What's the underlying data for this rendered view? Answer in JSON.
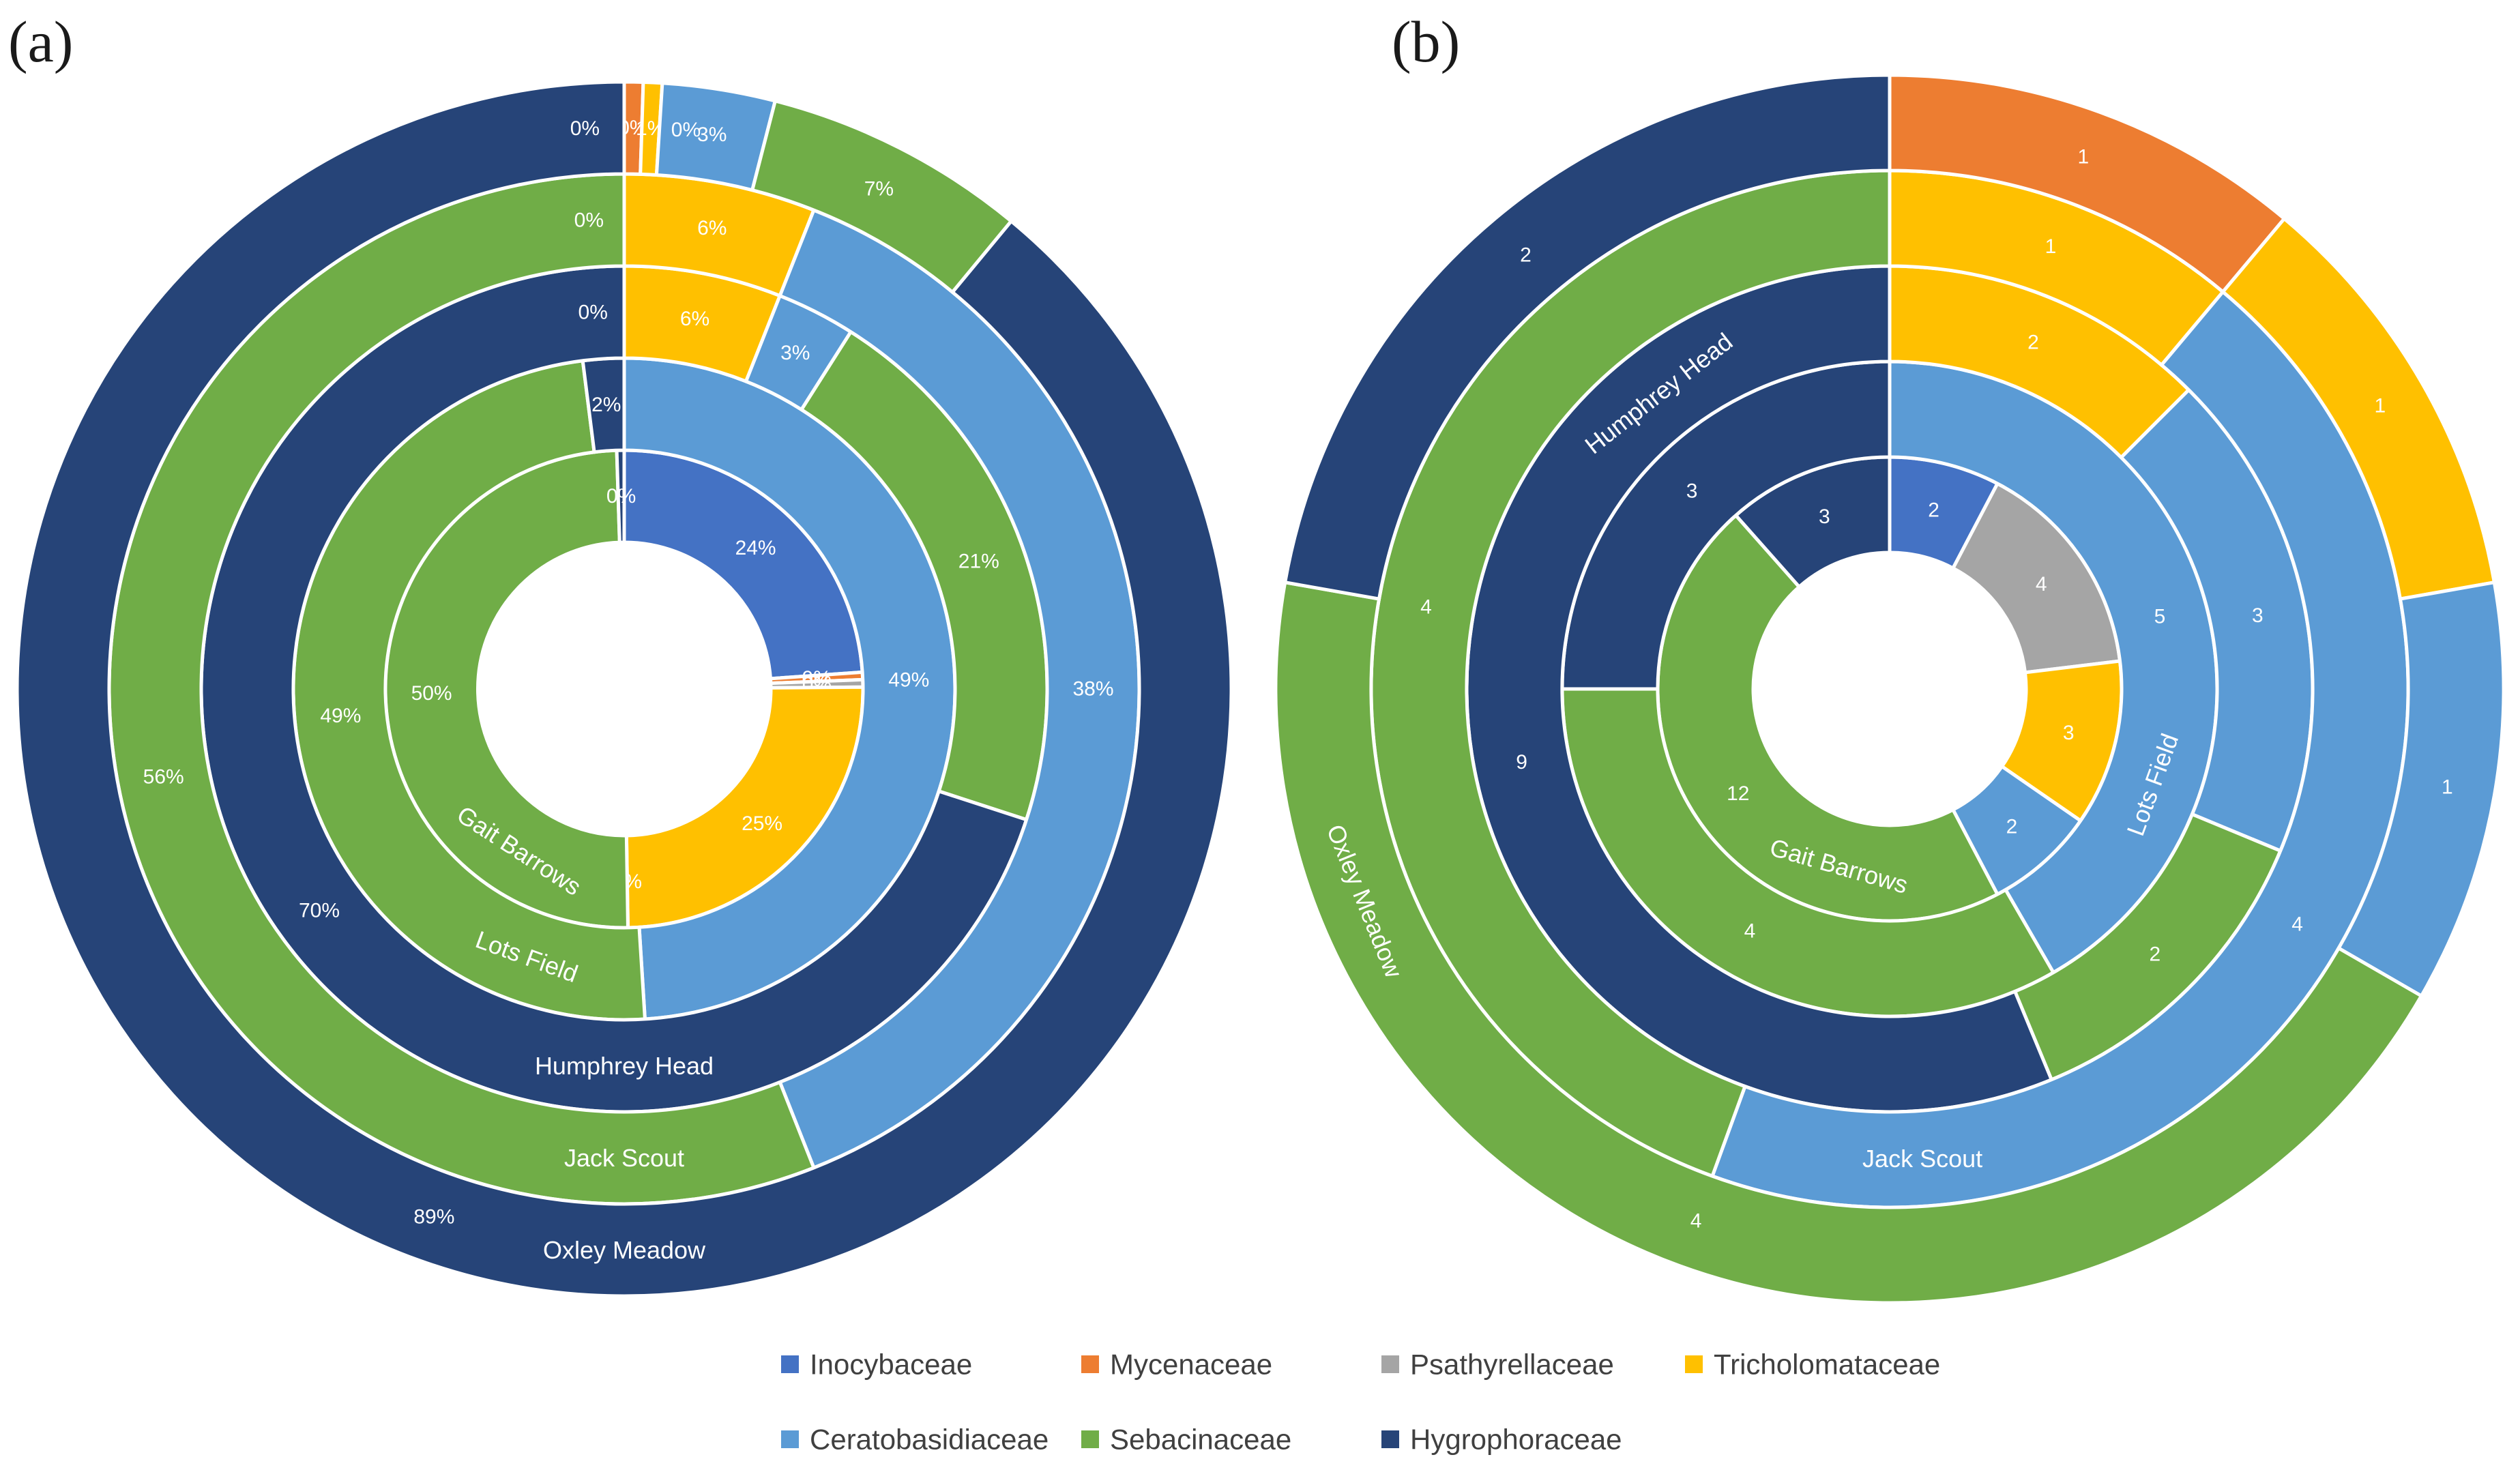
{
  "colors": {
    "Inocybaceae": "#4472C4",
    "Mycenaceae": "#ED7D31",
    "Psathyrellaceae": "#A5A5A5",
    "Tricholomataceae": "#FFC000",
    "Ceratobasidiaceae": "#5B9BD5",
    "Sebacinaceae": "#70AD47",
    "Hygrophoraceae": "#264478"
  },
  "legend": {
    "items": [
      {
        "name": "Inocybaceae",
        "icon": "square-swatch"
      },
      {
        "name": "Mycenaceae",
        "icon": "square-swatch"
      },
      {
        "name": "Psathyrellaceae",
        "icon": "square-swatch"
      },
      {
        "name": "Tricholomataceae",
        "icon": "square-swatch"
      },
      {
        "name": "Ceratobasidiaceae",
        "icon": "square-swatch"
      },
      {
        "name": "Sebacinaceae",
        "icon": "square-swatch"
      },
      {
        "name": "Hygrophoraceae",
        "icon": "square-swatch"
      }
    ]
  },
  "chart_data": [
    {
      "type": "multi-level doughnut",
      "panel_label": "(a)",
      "value_format": "percent",
      "categories": [
        "Inocybaceae",
        "Mycenaceae",
        "Psathyrellaceae",
        "Tricholomataceae",
        "Ceratobasidiaceae",
        "Sebacinaceae",
        "Hygrophoraceae"
      ],
      "rings": [
        {
          "name": "Gait Barrows",
          "position": "innermost",
          "segments": [
            {
              "family": "Inocybaceae",
              "value": 24,
              "label": "24%"
            },
            {
              "family": "Mycenaceae",
              "value": 0.5,
              "label": "0%"
            },
            {
              "family": "Psathyrellaceae",
              "value": 0.5,
              "label": "0%"
            },
            {
              "family": "Tricholomataceae",
              "value": 25,
              "label": "25%"
            },
            {
              "family": "Ceratobasidiaceae",
              "value": 0,
              "label": "0%"
            },
            {
              "family": "Sebacinaceae",
              "value": 50,
              "label": "50%"
            },
            {
              "family": "Hygrophoraceae",
              "value": 0.5,
              "label": "0%"
            }
          ]
        },
        {
          "name": "Lots Field",
          "segments": [
            {
              "family": "Inocybaceae",
              "value": 0,
              "label": "0%"
            },
            {
              "family": "Mycenaceae",
              "value": 0,
              "label": "0%"
            },
            {
              "family": "Psathyrellaceae",
              "value": 0,
              "label": "0%"
            },
            {
              "family": "Tricholomataceae",
              "value": 0,
              "label": ""
            },
            {
              "family": "Ceratobasidiaceae",
              "value": 49,
              "label": "49%"
            },
            {
              "family": "Sebacinaceae",
              "value": 49,
              "label": "49%"
            },
            {
              "family": "Hygrophoraceae",
              "value": 2,
              "label": "2%"
            }
          ]
        },
        {
          "name": "Humphrey Head",
          "segments": [
            {
              "family": "Inocybaceae",
              "value": 0,
              "label": ""
            },
            {
              "family": "Mycenaceae",
              "value": 0,
              "label": ""
            },
            {
              "family": "Psathyrellaceae",
              "value": 0,
              "label": ""
            },
            {
              "family": "Tricholomataceae",
              "value": 6,
              "label": "6%"
            },
            {
              "family": "Ceratobasidiaceae",
              "value": 3,
              "label": "3%"
            },
            {
              "family": "Sebacinaceae",
              "value": 21,
              "label": "21%"
            },
            {
              "family": "Hygrophoraceae",
              "value": 70,
              "label": "70%",
              "end_label": "0%"
            }
          ]
        },
        {
          "name": "Jack Scout",
          "segments": [
            {
              "family": "Inocybaceae",
              "value": 0,
              "label": ""
            },
            {
              "family": "Mycenaceae",
              "value": 0,
              "label": ""
            },
            {
              "family": "Psathyrellaceae",
              "value": 0,
              "label": ""
            },
            {
              "family": "Tricholomataceae",
              "value": 6,
              "label": "6%"
            },
            {
              "family": "Ceratobasidiaceae",
              "value": 38,
              "label": "38%"
            },
            {
              "family": "Sebacinaceae",
              "value": 56,
              "label": "56%",
              "end_label": "0%"
            },
            {
              "family": "Hygrophoraceae",
              "value": 0,
              "label": ""
            }
          ]
        },
        {
          "name": "Oxley Meadow",
          "position": "outermost",
          "segments": [
            {
              "family": "Inocybaceae",
              "value": 0,
              "label": ""
            },
            {
              "family": "Mycenaceae",
              "value": 0.5,
              "label": "0%"
            },
            {
              "family": "Psathyrellaceae",
              "value": 0,
              "label": ""
            },
            {
              "family": "Tricholomataceae",
              "value": 0.5,
              "label": "1%"
            },
            {
              "family": "Ceratobasidiaceae",
              "value": 3,
              "label": "3%",
              "start_label": "0%"
            },
            {
              "family": "Sebacinaceae",
              "value": 7,
              "label": "7%"
            },
            {
              "family": "Hygrophoraceae",
              "value": 89,
              "label": "89%",
              "end_label": "0%"
            }
          ]
        }
      ]
    },
    {
      "type": "multi-level doughnut",
      "panel_label": "(b)",
      "value_format": "count",
      "categories": [
        "Inocybaceae",
        "Mycenaceae",
        "Psathyrellaceae",
        "Tricholomataceae",
        "Ceratobasidiaceae",
        "Sebacinaceae",
        "Hygrophoraceae"
      ],
      "rings": [
        {
          "name": "Gait Barrows",
          "position": "innermost",
          "segments": [
            {
              "family": "Inocybaceae",
              "value": 2,
              "label": "2"
            },
            {
              "family": "Psathyrellaceae",
              "value": 4,
              "label": "4"
            },
            {
              "family": "Tricholomataceae",
              "value": 3,
              "label": "3"
            },
            {
              "family": "Ceratobasidiaceae",
              "value": 2,
              "label": "2"
            },
            {
              "family": "Sebacinaceae",
              "value": 12,
              "label": "12"
            },
            {
              "family": "Hygrophoraceae",
              "value": 3,
              "label": "3"
            }
          ]
        },
        {
          "name": "Lots Field",
          "segments": [
            {
              "family": "Ceratobasidiaceae",
              "value": 5,
              "label": "5"
            },
            {
              "family": "Sebacinaceae",
              "value": 4,
              "label": "4"
            },
            {
              "family": "Hygrophoraceae",
              "value": 3,
              "label": "3"
            }
          ]
        },
        {
          "name": "Humphrey Head",
          "segments": [
            {
              "family": "Tricholomataceae",
              "value": 2,
              "label": "2"
            },
            {
              "family": "Ceratobasidiaceae",
              "value": 3,
              "label": "3"
            },
            {
              "family": "Sebacinaceae",
              "value": 2,
              "label": "2"
            },
            {
              "family": "Hygrophoraceae",
              "value": 9,
              "label": "9"
            }
          ]
        },
        {
          "name": "Jack Scout",
          "segments": [
            {
              "family": "Tricholomataceae",
              "value": 1,
              "label": "1"
            },
            {
              "family": "Ceratobasidiaceae",
              "value": 4,
              "label": "4"
            },
            {
              "family": "Sebacinaceae",
              "value": 4,
              "label": "4"
            }
          ]
        },
        {
          "name": "Oxley Meadow",
          "position": "outermost",
          "segments": [
            {
              "family": "Mycenaceae",
              "value": 1,
              "label": "1"
            },
            {
              "family": "Tricholomataceae",
              "value": 1,
              "label": "1"
            },
            {
              "family": "Ceratobasidiaceae",
              "value": 1,
              "label": "1"
            },
            {
              "family": "Sebacinaceae",
              "value": 4,
              "label": "4"
            },
            {
              "family": "Hygrophoraceae",
              "value": 2,
              "label": "2"
            }
          ]
        }
      ]
    }
  ]
}
